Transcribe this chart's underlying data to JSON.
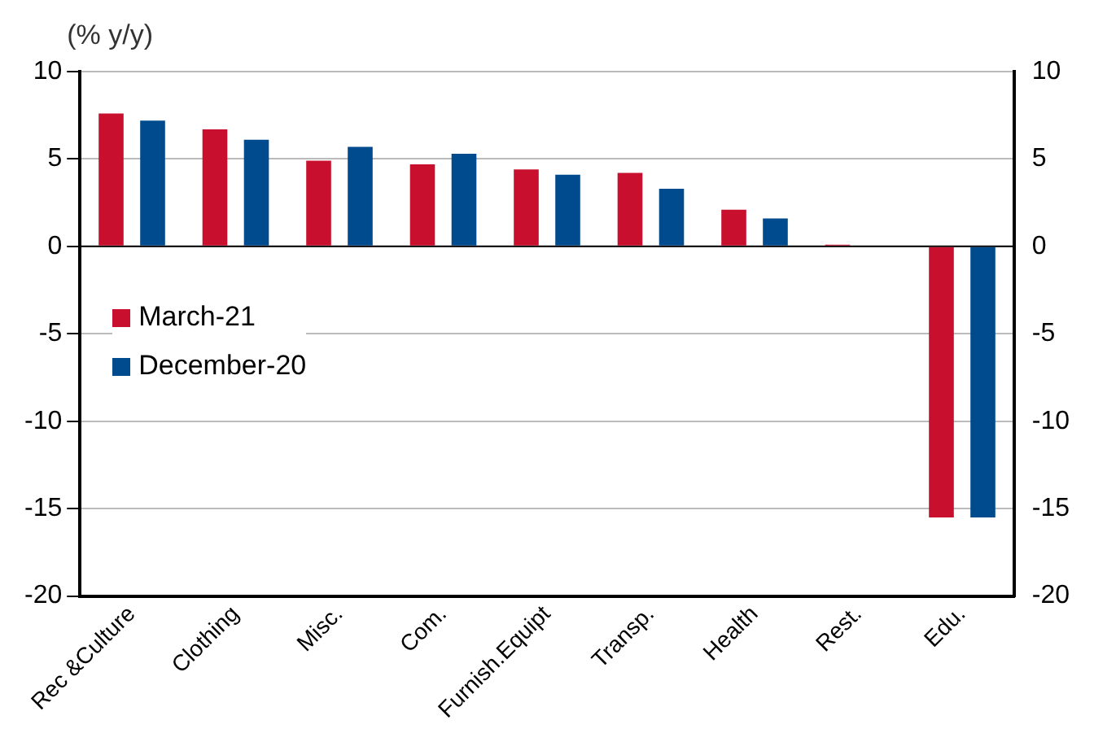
{
  "chart_data": {
    "type": "bar",
    "ylabel": "(% y/y)",
    "categories": [
      "Rec &Culture",
      "Clothing",
      "Misc.",
      "Com.",
      "Furnish.Equipt",
      "Transp.",
      "Health",
      "Rest.",
      "Edu."
    ],
    "series": [
      {
        "name": "March-21",
        "color": "#c8102e",
        "values": [
          7.6,
          6.7,
          4.9,
          4.7,
          4.4,
          4.2,
          2.1,
          0.1,
          -15.5
        ]
      },
      {
        "name": "December-20",
        "color": "#004b8d",
        "values": [
          7.2,
          6.1,
          5.7,
          5.3,
          4.1,
          3.3,
          1.6,
          null,
          -15.5
        ]
      }
    ],
    "ylim": [
      -20,
      10
    ],
    "yticks": [
      -20,
      -15,
      -10,
      -5,
      0,
      5,
      10
    ],
    "y2lim": [
      -20,
      10
    ],
    "y2ticks": [
      -20,
      -15,
      -10,
      -5,
      0,
      5,
      10
    ],
    "grid": "y",
    "legend": "left"
  }
}
